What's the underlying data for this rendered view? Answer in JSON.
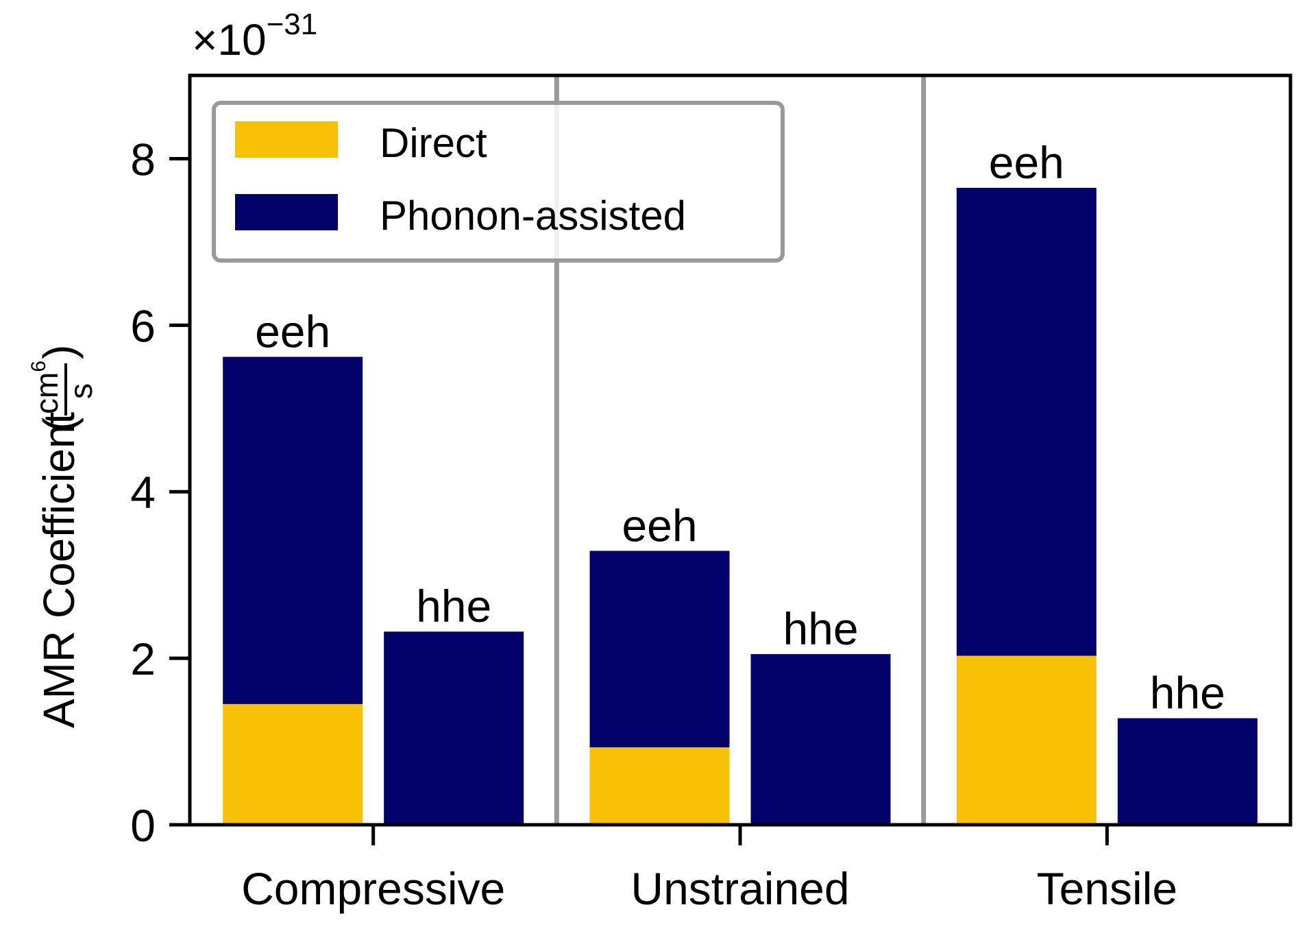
{
  "chart_data": {
    "type": "bar",
    "stacked": true,
    "categories": [
      "Compressive",
      "Unstrained",
      "Tensile"
    ],
    "ylabel": "AMR Coefficient",
    "ylabel_unit": {
      "numerator": "cm",
      "numerator_exponent": "6",
      "denominator": "s"
    },
    "scale_offset": {
      "prefix": "×10",
      "exponent": "−31"
    },
    "ylim": [
      0,
      9
    ],
    "yticks": [
      "0",
      "2",
      "4",
      "6",
      "8"
    ],
    "grid": false,
    "legend_position": "top-left",
    "series": [
      {
        "name": "Direct",
        "color": "#f8c106"
      },
      {
        "name": "Phonon-assisted",
        "color": "#03026b"
      }
    ],
    "groups": [
      {
        "category": "Compressive",
        "bars": [
          {
            "label": "eeh",
            "direct": 1.45,
            "phonon_assisted": 4.17
          },
          {
            "label": "hhe",
            "direct": 0.0,
            "phonon_assisted": 2.32
          }
        ]
      },
      {
        "category": "Unstrained",
        "bars": [
          {
            "label": "eeh",
            "direct": 0.93,
            "phonon_assisted": 2.36
          },
          {
            "label": "hhe",
            "direct": 0.0,
            "phonon_assisted": 2.05
          }
        ]
      },
      {
        "category": "Tensile",
        "bars": [
          {
            "label": "eeh",
            "direct": 2.03,
            "phonon_assisted": 5.62
          },
          {
            "label": "hhe",
            "direct": 0.0,
            "phonon_assisted": 1.28
          }
        ]
      }
    ]
  }
}
